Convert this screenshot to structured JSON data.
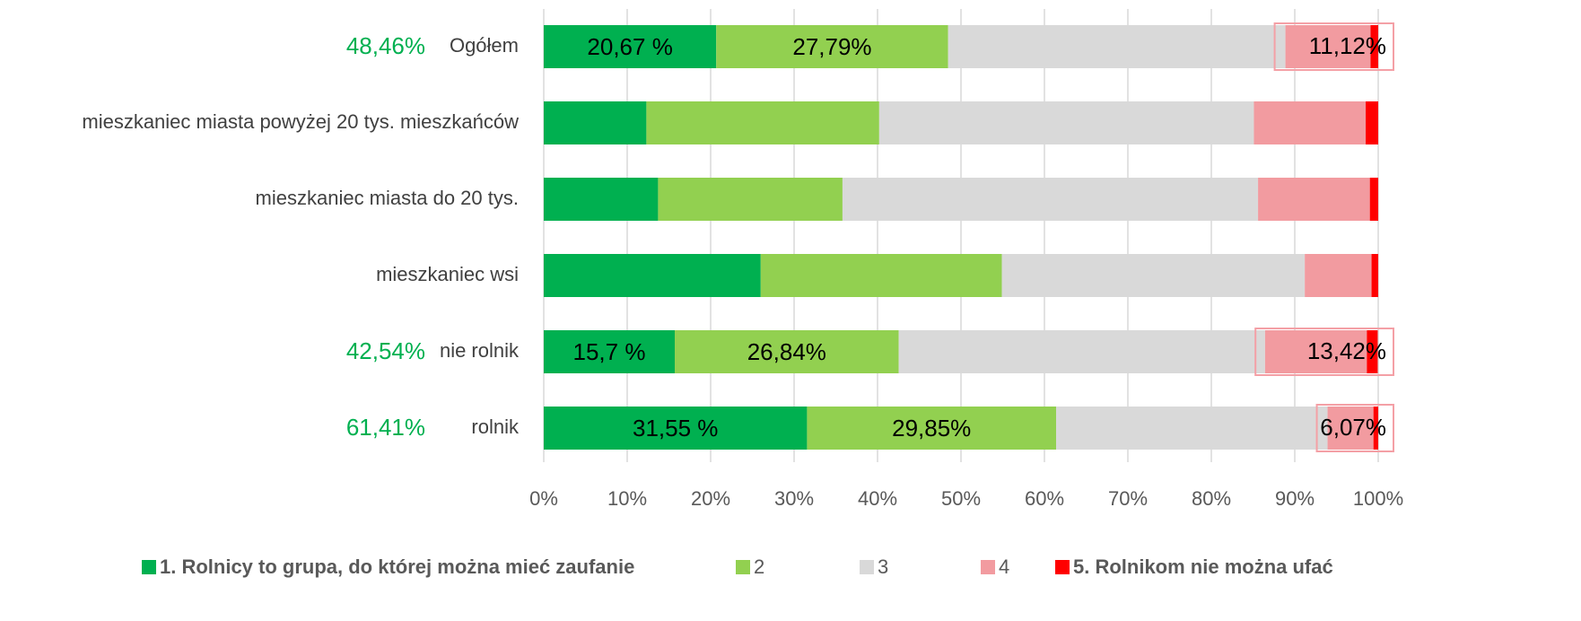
{
  "chart_data": {
    "type": "stacked_bar_horizontal",
    "categories": [
      "Ogółem",
      "mieszkaniec miasta powyżej 20 tys. mieszkańców",
      "mieszkaniec miasta do 20 tys.",
      "mieszkaniec wsi",
      "nie rolnik",
      "rolnik"
    ],
    "series": [
      {
        "name": "1. Rolnicy to grupa, do której można mieć zaufanie",
        "color": "#00b050",
        "values": [
          20.67,
          12.3,
          13.7,
          26.0,
          15.7,
          31.55
        ],
        "value_labels": [
          "20,67 %",
          null,
          null,
          null,
          "15,7 %",
          "31,55 %"
        ]
      },
      {
        "name": "2",
        "color": "#92d050",
        "values": [
          27.79,
          27.9,
          22.1,
          28.9,
          26.84,
          29.85
        ],
        "value_labels": [
          "27,79%",
          null,
          null,
          null,
          "26,84%",
          "29,85%"
        ]
      },
      {
        "name": "3",
        "color": "#d9d9d9",
        "values": [
          40.42,
          44.9,
          49.8,
          36.3,
          43.9,
          32.53
        ]
      },
      {
        "name": "4",
        "color": "#f29ba0",
        "values": [
          10.2,
          13.4,
          13.4,
          8.0,
          12.2,
          5.5
        ]
      },
      {
        "name": "5. Rolnikom nie można ufać",
        "color": "#ff0000",
        "values": [
          0.92,
          1.5,
          1.0,
          0.8,
          1.3,
          0.57
        ]
      }
    ],
    "left_annotations": [
      {
        "category": 0,
        "value": 48.46,
        "label": "48,46%"
      },
      {
        "category": 4,
        "value": 42.54,
        "label": "42,54%"
      },
      {
        "category": 5,
        "value": 61.41,
        "label": "61,41%"
      }
    ],
    "right_annotations": [
      {
        "category": 0,
        "value": 11.12,
        "label": "11,12%"
      },
      {
        "category": 4,
        "value": 13.42,
        "label": "13,42%"
      },
      {
        "category": 5,
        "value": 6.07,
        "label": "6,07%"
      }
    ],
    "xlim": [
      0,
      100
    ],
    "xticks": [
      {
        "value": 0,
        "label": "0%"
      },
      {
        "value": 10,
        "label": "10%"
      },
      {
        "value": 20,
        "label": "20%"
      },
      {
        "value": 30,
        "label": "30%"
      },
      {
        "value": 40,
        "label": "40%"
      },
      {
        "value": 50,
        "label": "50%"
      },
      {
        "value": 60,
        "label": "60%"
      },
      {
        "value": 70,
        "label": "70%"
      },
      {
        "value": 80,
        "label": "80%"
      },
      {
        "value": 90,
        "label": "90%"
      },
      {
        "value": 100,
        "label": "100%"
      }
    ],
    "grid": true,
    "legend": "bottom"
  }
}
